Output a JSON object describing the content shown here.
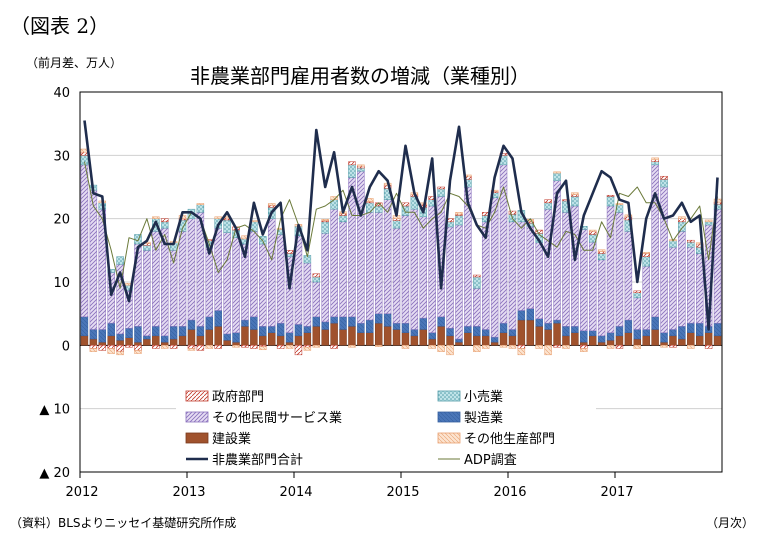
{
  "figure_label": "（図表 2）",
  "unit_label": "（前月差、万人）",
  "source_note": "（資料）BLSよりニッセイ基礎研究所作成",
  "x_unit": "（月次）",
  "colors": {
    "government": "#c0392b",
    "retail": "#6fb7c2",
    "private_services": "#9b86c5",
    "manufacturing": "#4a76b8",
    "construction": "#a0522d",
    "other_goods": "#f4b183",
    "nonfarm_total": "#1f2d4d",
    "adp": "#6b7a3a"
  },
  "chart_data": {
    "type": "bar",
    "title": "非農業部門雇用者数の増減（業種別）",
    "xlabel": "",
    "ylabel": "",
    "ylim": [
      -20,
      40
    ],
    "yticks": [
      40,
      30,
      20,
      10,
      0,
      -10,
      -20
    ],
    "ytick_labels": [
      "40",
      "30",
      "20",
      "10",
      "0",
      "▲ 10",
      "▲ 20"
    ],
    "year_labels": [
      "2012",
      "2013",
      "2014",
      "2015",
      "2016",
      "2017"
    ],
    "start_month": "2012-01",
    "end_month": "2017-10",
    "grid": true,
    "legend_position": "bottom-left",
    "stacked": true,
    "series": [
      {
        "name": "政府部門",
        "kind": "bar",
        "values": [
          0.5,
          -0.5,
          -0.8,
          -0.5,
          -1.0,
          -0.3,
          -0.8,
          0.3,
          -0.5,
          0.5,
          -0.5,
          0.2,
          -0.5,
          -0.8,
          0.2,
          -0.5,
          0.3,
          0.5,
          -0.3,
          -0.5,
          -0.2,
          0.3,
          -0.5,
          0.5,
          -1.5,
          -0.3,
          0.5,
          0.2,
          -0.5,
          0.3,
          0.5,
          0.3,
          0.2,
          0.5,
          0.5,
          0.3,
          0.5,
          0.3,
          0.5,
          0.5,
          0.3,
          0.5,
          0.2,
          0.5,
          0.3,
          0.5,
          0.2,
          0.3,
          0.5,
          -0.5,
          0.3,
          0.5,
          0.5,
          -0.3,
          0.2,
          0.3,
          -0.5,
          0.5,
          0.3,
          0.2,
          -0.5,
          0.5,
          0.3,
          0.5,
          0.3,
          0.5,
          -0.3,
          0.5,
          0.3,
          0.5,
          -0.5,
          0.3
        ]
      },
      {
        "name": "小売業",
        "kind": "bar",
        "values": [
          1.5,
          0.8,
          1.0,
          0.5,
          1.2,
          0.8,
          1.5,
          0.8,
          2.0,
          1.0,
          1.2,
          1.8,
          1.5,
          1.2,
          1.0,
          1.5,
          2.0,
          1.2,
          0.8,
          1.5,
          1.2,
          1.8,
          0.8,
          0.5,
          1.5,
          1.2,
          0.8,
          1.8,
          1.5,
          1.0,
          2.0,
          0.5,
          1.5,
          1.0,
          1.8,
          1.2,
          1.5,
          2.0,
          1.5,
          1.0,
          1.2,
          0.8,
          1.5,
          1.2,
          1.8,
          1.0,
          0.8,
          1.5,
          1.2,
          1.8,
          0.5,
          1.5,
          1.0,
          1.2,
          1.8,
          1.5,
          0.5,
          1.2,
          1.0,
          1.5,
          1.2,
          1.8,
          0.8,
          1.5,
          0.5,
          1.2,
          1.0,
          1.5,
          0.8,
          1.0,
          0.5,
          0.8
        ]
      },
      {
        "name": "その他民間サービス業",
        "kind": "bar",
        "values": [
          24.0,
          22.0,
          19.0,
          8.0,
          11.0,
          6.0,
          13.0,
          13.5,
          15.0,
          17.0,
          12.0,
          15.0,
          16.0,
          18.0,
          11.0,
          13.0,
          16.0,
          15.0,
          12.0,
          13.5,
          13.0,
          17.0,
          14.0,
          12.0,
          14.0,
          10.0,
          5.5,
          14.0,
          17.0,
          15.0,
          22.0,
          24.0,
          17.0,
          16.0,
          18.0,
          15.0,
          17.0,
          19.0,
          16.0,
          20.0,
          19.0,
          16.0,
          18.0,
          22.0,
          6.0,
          17.0,
          22.0,
          25.0,
          17.0,
          14.0,
          13.0,
          12.0,
          18.0,
          22.0,
          18.0,
          19.0,
          16.0,
          14.0,
          12.0,
          20.0,
          18.0,
          14.0,
          5.0,
          10.0,
          24.0,
          23.0,
          13.0,
          15.0,
          12.0,
          11.0,
          16.0,
          18.0
        ]
      },
      {
        "name": "製造業",
        "kind": "bar",
        "values": [
          3.0,
          1.5,
          2.0,
          2.0,
          1.0,
          1.5,
          2.5,
          0.5,
          1.5,
          1.0,
          2.0,
          1.5,
          1.5,
          1.5,
          2.0,
          2.5,
          1.0,
          1.5,
          1.0,
          2.0,
          1.5,
          1.0,
          2.0,
          1.5,
          1.8,
          1.0,
          1.5,
          1.2,
          1.0,
          2.0,
          1.5,
          1.5,
          2.0,
          1.5,
          2.0,
          1.0,
          1.5,
          1.0,
          1.8,
          1.0,
          1.5,
          1.2,
          0.5,
          1.0,
          1.5,
          1.0,
          0.8,
          1.5,
          1.0,
          1.5,
          1.8,
          1.2,
          1.0,
          0.5,
          1.5,
          1.0,
          1.8,
          0.8,
          1.0,
          1.2,
          1.5,
          2.0,
          1.5,
          1.0,
          2.0,
          1.5,
          1.0,
          2.0,
          1.5,
          2.0,
          1.0,
          2.0
        ]
      },
      {
        "name": "建設業",
        "kind": "bar",
        "values": [
          1.5,
          1.0,
          0.5,
          1.5,
          0.8,
          1.2,
          0.5,
          1.0,
          1.5,
          0.5,
          1.0,
          1.5,
          2.5,
          1.5,
          2.5,
          3.0,
          0.8,
          0.5,
          3.0,
          2.5,
          1.5,
          2.0,
          1.5,
          0.5,
          1.5,
          2.0,
          3.0,
          2.5,
          3.5,
          2.5,
          3.0,
          2.0,
          2.0,
          3.5,
          3.0,
          2.5,
          2.0,
          1.5,
          2.5,
          1.0,
          3.0,
          1.5,
          0.5,
          2.0,
          1.5,
          1.5,
          0.5,
          2.0,
          1.5,
          4.0,
          4.0,
          3.0,
          2.5,
          3.5,
          1.5,
          2.0,
          0.5,
          1.5,
          0.5,
          0.8,
          1.5,
          2.0,
          1.0,
          1.5,
          2.5,
          0.5,
          1.5,
          1.0,
          2.0,
          1.5,
          2.0,
          1.5
        ]
      },
      {
        "name": "その他生産部門",
        "kind": "bar",
        "values": [
          0.5,
          -0.5,
          0.3,
          -0.8,
          -0.5,
          0.3,
          -0.5,
          0.2,
          0.3,
          -0.5,
          0.2,
          0.5,
          -0.3,
          0.2,
          -0.5,
          0.3,
          0.2,
          -0.3,
          0.5,
          0.2,
          -0.5,
          0.3,
          0.2,
          -0.5,
          0.3,
          -0.5,
          -0.3,
          0.2,
          0.5,
          0.3,
          -0.3,
          0.2,
          0.5,
          -0.2,
          0.3,
          0.5,
          -0.5,
          0.3,
          0.2,
          -0.5,
          -1.0,
          -1.5,
          0.3,
          0.2,
          -1.0,
          -0.5,
          0.2,
          -0.3,
          -0.5,
          -1.0,
          0.3,
          -0.5,
          -1.5,
          0.2,
          -0.5,
          0.3,
          -0.5,
          0.2,
          0.3,
          -0.5,
          0.2,
          0.3,
          -0.5,
          0.2,
          0.3,
          -0.3,
          0.2,
          0.3,
          -0.5,
          0.2,
          0.3,
          0.5
        ]
      },
      {
        "name": "非農業部門合計",
        "kind": "line",
        "values": [
          35.5,
          24.0,
          23.5,
          8.0,
          11.5,
          7.0,
          15.5,
          16.5,
          19.5,
          16.0,
          16.0,
          21.0,
          21.0,
          20.0,
          14.5,
          19.0,
          21.0,
          18.5,
          14.0,
          22.5,
          17.5,
          21.0,
          22.5,
          9.0,
          19.0,
          15.0,
          34.0,
          25.0,
          30.5,
          21.0,
          25.0,
          20.5,
          25.0,
          27.5,
          26.0,
          20.5,
          31.5,
          24.0,
          21.0,
          29.5,
          9.0,
          26.0,
          34.5,
          22.5,
          19.0,
          17.0,
          26.5,
          31.5,
          29.5,
          21.0,
          18.5,
          16.5,
          14.0,
          24.0,
          26.0,
          13.5,
          20.5,
          24.0,
          27.5,
          26.5,
          23.0,
          22.5,
          10.0,
          20.0,
          24.0,
          20.0,
          20.5,
          22.5,
          19.5,
          20.5,
          2.5,
          26.5
        ]
      },
      {
        "name": "ADP調査",
        "kind": "line",
        "values": [
          29.0,
          22.0,
          20.0,
          15.0,
          9.0,
          17.0,
          16.5,
          20.0,
          15.0,
          17.5,
          13.0,
          18.5,
          21.0,
          20.0,
          16.0,
          11.5,
          13.5,
          18.5,
          19.0,
          18.0,
          16.5,
          13.5,
          20.0,
          23.0,
          19.0,
          14.0,
          21.5,
          22.0,
          23.0,
          24.5,
          20.5,
          20.5,
          21.0,
          22.5,
          21.0,
          24.0,
          21.0,
          21.0,
          18.5,
          20.0,
          21.0,
          24.0,
          23.5,
          22.0,
          19.0,
          18.5,
          21.0,
          25.0,
          20.0,
          18.5,
          20.0,
          17.5,
          16.5,
          15.5,
          18.0,
          17.5,
          15.0,
          15.0,
          19.5,
          17.0,
          24.0,
          23.5,
          25.0,
          22.5,
          22.5,
          20.0,
          16.5,
          18.5,
          20.0,
          22.0,
          13.5,
          23.5
        ]
      }
    ]
  }
}
